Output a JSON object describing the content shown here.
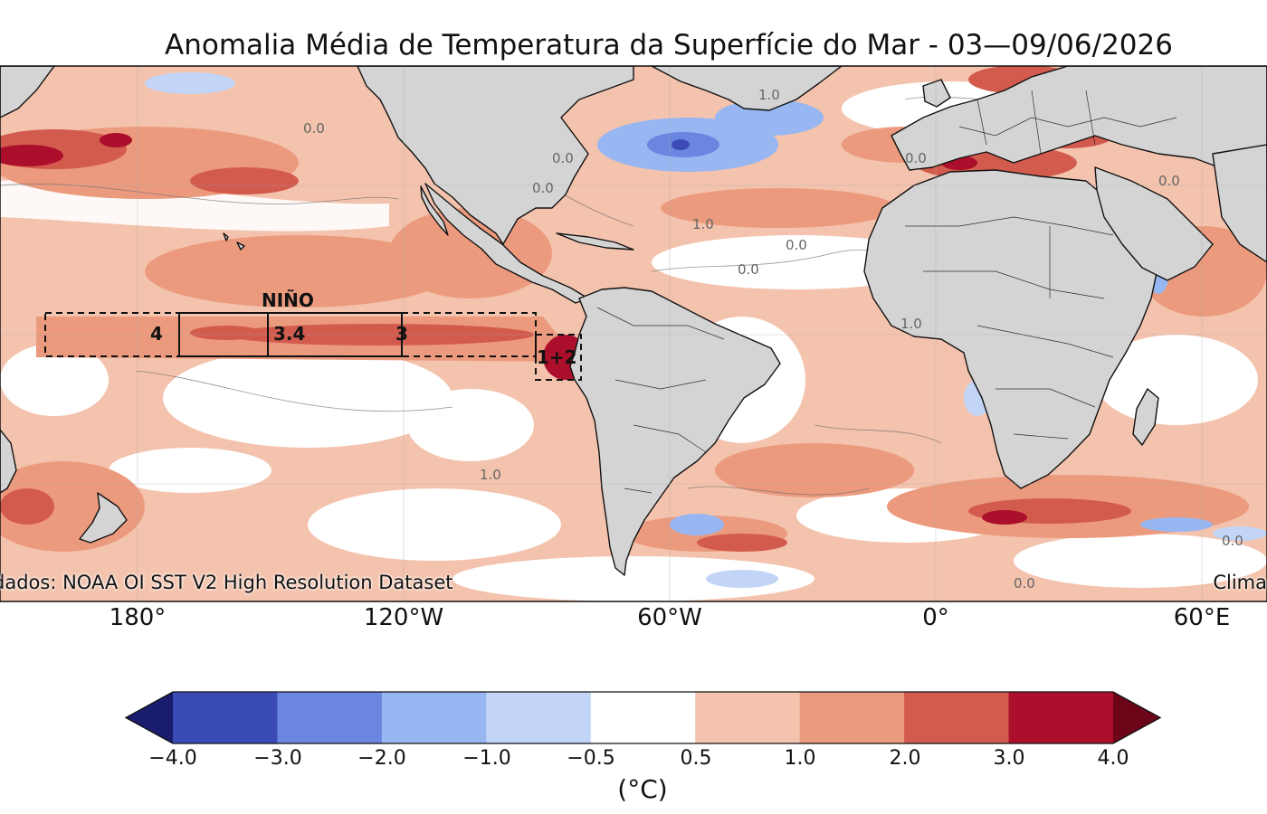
{
  "title": "Anomalia Média de Temperatura da Superfície do Mar - 03—09/06/2026",
  "credits": {
    "source": "dados: NOAA OI SST V2 High Resolution Dataset",
    "author": "Clima"
  },
  "longitude_ticks": [
    "180°",
    "120°W",
    "60°W",
    "0°",
    "60°E"
  ],
  "nino": {
    "title": "NIÑO",
    "regions": [
      "4",
      "3.4",
      "3",
      "1+2"
    ]
  },
  "contour_labels": [
    "0.0",
    "1.0"
  ],
  "colorbar": {
    "unit": "(°C)",
    "ticks": [
      "−4.0",
      "−3.0",
      "−2.0",
      "−1.0",
      "−0.5",
      "0.5",
      "1.0",
      "2.0",
      "3.0",
      "4.0"
    ],
    "colors": [
      "#1a1c6e",
      "#3a4bb8",
      "#6a86e0",
      "#98b6f2",
      "#c3d5f7",
      "#ffffff",
      "#f4c3ad",
      "#ec9a7e",
      "#d35b4e",
      "#ab0f2b",
      "#6d0518"
    ]
  },
  "colors": {
    "land": "#d4d4d4",
    "coast": "#111111"
  }
}
